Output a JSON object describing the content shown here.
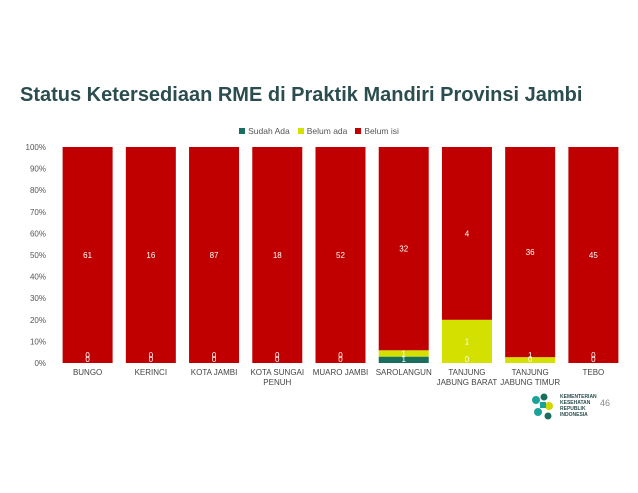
{
  "slide": {
    "title": "Status Ketersediaan RME di Praktik Mandiri Provinsi Jambi",
    "page_number": "46",
    "logo_text": [
      "KEMENTERIAN",
      "KESEHATAN",
      "REPUBLIK",
      "INDONESIA"
    ]
  },
  "colors": {
    "sudah_ada": "#1a6e5e",
    "belum_ada": "#d4e000",
    "belum_isi": "#c00000",
    "title": "#2b4d4f"
  },
  "chart_data": {
    "type": "bar",
    "stacked": "percent",
    "title": "",
    "xlabel": "",
    "ylabel": "",
    "ylim": [
      0,
      100
    ],
    "y_ticks": [
      "0%",
      "10%",
      "20%",
      "30%",
      "40%",
      "50%",
      "60%",
      "70%",
      "80%",
      "90%",
      "100%"
    ],
    "legend_position": "top-center",
    "categories": [
      [
        "BUNGO"
      ],
      [
        "KERINCI"
      ],
      [
        "KOTA JAMBI"
      ],
      [
        "KOTA SUNGAI",
        "PENUH"
      ],
      [
        "MUARO JAMBI"
      ],
      [
        "SAROLANGUN"
      ],
      [
        "TANJUNG",
        "JABUNG BARAT"
      ],
      [
        "TANJUNG",
        "JABUNG TIMUR"
      ],
      [
        "TEBO"
      ]
    ],
    "series": [
      {
        "name": "Sudah Ada",
        "color": "#1a6e5e",
        "values": [
          0,
          0,
          0,
          0,
          0,
          1,
          0,
          0,
          0
        ]
      },
      {
        "name": "Belum ada",
        "color": "#d4e000",
        "values": [
          0,
          0,
          0,
          0,
          0,
          1,
          1,
          1,
          0
        ]
      },
      {
        "name": "Belum isi",
        "color": "#c00000",
        "values": [
          61,
          16,
          87,
          18,
          52,
          32,
          4,
          36,
          45
        ]
      }
    ]
  }
}
